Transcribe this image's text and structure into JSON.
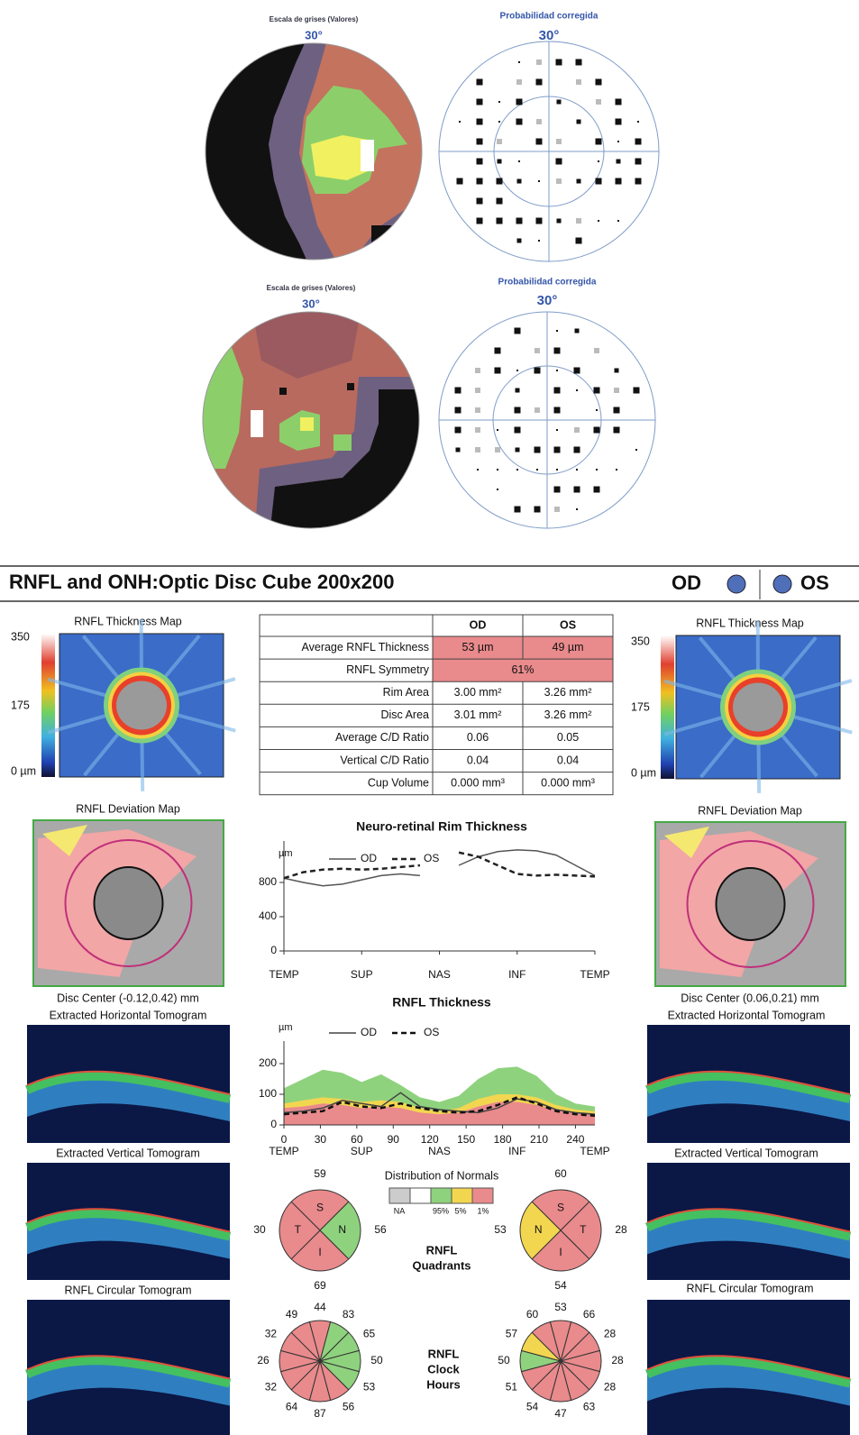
{
  "visual_fields": [
    {
      "map_title": "Escala de grises (Valores)",
      "map_angle": "30°",
      "prob_title": "Probabilidad corregida",
      "prob_angle": "30°"
    },
    {
      "map_title": "Escala de grises (Valores)",
      "map_angle": "30°",
      "prob_title": "Probabilidad corregida",
      "prob_angle": "30°"
    }
  ],
  "header": {
    "title": "RNFL and ONH:Optic Disc Cube 200x200",
    "od": "OD",
    "os": "OS"
  },
  "left": {
    "thickness_map_title": "RNFL Thickness Map",
    "scale": [
      "350",
      "175",
      "0 µm"
    ],
    "deviation_map_title": "RNFL Deviation Map",
    "disc_center": "Disc Center  (-0.12,0.42) mm",
    "horizontal_title": "Extracted Horizontal Tomogram",
    "vertical_title": "Extracted Vertical Tomogram",
    "circular_title": "RNFL Circular Tomogram"
  },
  "right": {
    "thickness_map_title": "RNFL Thickness Map",
    "scale": [
      "350",
      "175",
      "0 µm"
    ],
    "deviation_map_title": "RNFL Deviation Map",
    "disc_center": "Disc Center  (0.06,0.21) mm",
    "horizontal_title": "Extracted Horizontal Tomogram",
    "vertical_title": "Extracted Vertical Tomogram",
    "circular_title": "RNFL Circular Tomogram"
  },
  "table": {
    "columns": [
      "OD",
      "OS"
    ],
    "rows": [
      {
        "label": "Average RNFL Thickness",
        "values": [
          "53 µm",
          "49 µm"
        ],
        "fill": "#e98a8c"
      },
      {
        "label": "RNFL Symmetry",
        "values": [
          "61%"
        ],
        "fill": "#e98a8c"
      },
      {
        "label": "Rim Area",
        "values": [
          "3.00 mm²",
          "3.26 mm²"
        ]
      },
      {
        "label": "Disc Area",
        "values": [
          "3.01 mm²",
          "3.26 mm²"
        ]
      },
      {
        "label": "Average C/D Ratio",
        "values": [
          "0.06",
          "0.05"
        ]
      },
      {
        "label": "Vertical C/D Ratio",
        "values": [
          "0.04",
          "0.04"
        ]
      },
      {
        "label": "Cup Volume",
        "values": [
          "0.000 mm³",
          "0.000 mm³"
        ]
      }
    ]
  },
  "chart_data": [
    {
      "type": "line",
      "title": "Neuro-retinal Rim Thickness",
      "y_unit": "µm",
      "xlim": [
        0,
        360
      ],
      "ylim": [
        0,
        1200
      ],
      "yticks": [
        0,
        400,
        800
      ],
      "xticks": [
        {
          "value": 0,
          "label": "TEMP"
        },
        {
          "value": 90,
          "label": "SUP"
        },
        {
          "value": 180,
          "label": "NAS"
        },
        {
          "value": 270,
          "label": "INF"
        },
        {
          "value": 360,
          "label": "TEMP"
        }
      ],
      "x": [
        0,
        22.5,
        45,
        67.5,
        90,
        112.5,
        135,
        157.5,
        180,
        202.5,
        225,
        247.5,
        270,
        292.5,
        315,
        337.5,
        360
      ],
      "series": [
        {
          "name": "OD",
          "color": "#555555",
          "style": "solid",
          "values": [
            850,
            800,
            760,
            780,
            830,
            880,
            900,
            880,
            null,
            1000,
            1100,
            1160,
            1180,
            1170,
            1120,
            1000,
            880
          ]
        },
        {
          "name": "OS",
          "color": "#222222",
          "style": "dashed",
          "values": [
            850,
            920,
            950,
            960,
            950,
            960,
            980,
            1000,
            null,
            1150,
            1100,
            1000,
            900,
            880,
            890,
            880,
            870
          ]
        }
      ]
    },
    {
      "type": "line",
      "title": "RNFL Thickness",
      "y_unit": "µm",
      "xlim": [
        0,
        256
      ],
      "ylim": [
        0,
        250
      ],
      "yticks": [
        0,
        100,
        200
      ],
      "xticks": [
        0,
        30,
        60,
        90,
        120,
        150,
        180,
        210,
        240
      ],
      "xlabels": [
        {
          "value": 0,
          "label": "TEMP"
        },
        {
          "value": 64,
          "label": "SUP"
        },
        {
          "value": 128,
          "label": "NAS"
        },
        {
          "value": 192,
          "label": "INF"
        },
        {
          "value": 256,
          "label": "TEMP"
        }
      ],
      "x": [
        0,
        16,
        32,
        48,
        64,
        80,
        96,
        112,
        128,
        144,
        160,
        176,
        192,
        208,
        224,
        240,
        256
      ],
      "bands": [
        {
          "color": "#8fd27e",
          "values": [
            120,
            150,
            180,
            170,
            140,
            165,
            130,
            90,
            75,
            95,
            150,
            185,
            190,
            160,
            100,
            70,
            60
          ]
        },
        {
          "color": "#f2d650",
          "values": [
            70,
            80,
            90,
            85,
            75,
            80,
            75,
            55,
            45,
            55,
            85,
            100,
            100,
            90,
            65,
            50,
            45
          ]
        },
        {
          "color": "#e98a8c",
          "values": [
            55,
            60,
            70,
            65,
            55,
            60,
            55,
            40,
            35,
            40,
            60,
            75,
            75,
            65,
            50,
            40,
            35
          ]
        }
      ],
      "series": [
        {
          "name": "OD",
          "color": "#444444",
          "style": "solid",
          "values": [
            40,
            45,
            55,
            80,
            70,
            60,
            105,
            60,
            50,
            45,
            40,
            55,
            85,
            75,
            50,
            40,
            35
          ]
        },
        {
          "name": "OS",
          "color": "#111111",
          "style": "dashed",
          "values": [
            35,
            40,
            45,
            75,
            60,
            55,
            70,
            55,
            45,
            40,
            45,
            65,
            90,
            70,
            45,
            35,
            30
          ]
        }
      ]
    }
  ],
  "normals_legend": {
    "title": "Distribution of Normals",
    "labels": [
      "NA",
      "95%",
      "5%",
      "1%"
    ],
    "colors": [
      "#cccccc",
      "#ffffff",
      "#8fd27e",
      "#f2d650",
      "#e98a8c"
    ]
  },
  "quadrants": {
    "title_lines": [
      "RNFL",
      "Quadrants"
    ],
    "od": {
      "sectors": [
        {
          "label": "S",
          "value": 59,
          "color": "#e98a8c"
        },
        {
          "label": "N",
          "value": 56,
          "color": "#8fd27e"
        },
        {
          "label": "I",
          "value": 69,
          "color": "#e98a8c"
        },
        {
          "label": "T",
          "value": 30,
          "color": "#e98a8c"
        }
      ]
    },
    "os": {
      "sectors": [
        {
          "label": "S",
          "value": 60,
          "color": "#e98a8c"
        },
        {
          "label": "T",
          "value": 28,
          "color": "#e98a8c"
        },
        {
          "label": "I",
          "value": 54,
          "color": "#e98a8c"
        },
        {
          "label": "N",
          "value": 53,
          "color": "#f2d650"
        }
      ]
    }
  },
  "clock_hours": {
    "title_lines": [
      "RNFL",
      "Clock",
      "Hours"
    ],
    "od": {
      "values": [
        44,
        83,
        65,
        50,
        53,
        56,
        87,
        64,
        32,
        26,
        32,
        49
      ],
      "colors": [
        "#e98a8c",
        "#8fd27e",
        "#8fd27e",
        "#8fd27e",
        "#8fd27e",
        "#e98a8c",
        "#e98a8c",
        "#e98a8c",
        "#e98a8c",
        "#e98a8c",
        "#e98a8c",
        "#e98a8c"
      ]
    },
    "os": {
      "values": [
        53,
        66,
        28,
        28,
        28,
        63,
        47,
        54,
        51,
        50,
        57,
        60
      ],
      "colors": [
        "#e98a8c",
        "#e98a8c",
        "#e98a8c",
        "#e98a8c",
        "#e98a8c",
        "#e98a8c",
        "#e98a8c",
        "#e98a8c",
        "#e98a8c",
        "#8fd27e",
        "#f2d650",
        "#e98a8c"
      ]
    }
  }
}
